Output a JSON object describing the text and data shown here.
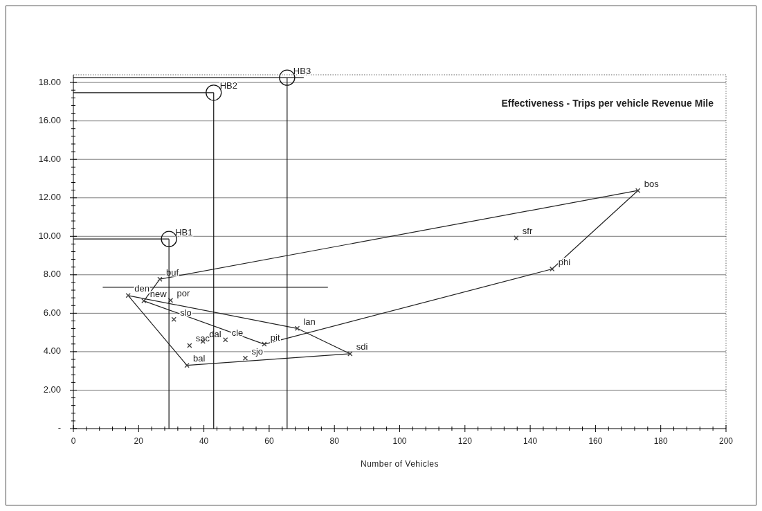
{
  "chart_data": {
    "type": "scatter",
    "title": "Effectiveness - Trips per vehicle Revenue Mile",
    "xlabel": "Number of Vehicles",
    "xlim": [
      0,
      200
    ],
    "xticks": [
      0,
      20,
      40,
      60,
      80,
      100,
      120,
      140,
      160,
      180,
      200
    ],
    "ylim": [
      0,
      18.4
    ],
    "yticks": [
      {
        "value": 0,
        "label": "-"
      },
      {
        "value": 2,
        "label": "2.00"
      },
      {
        "value": 4,
        "label": "4.00"
      },
      {
        "value": 6,
        "label": "6.00"
      },
      {
        "value": 8,
        "label": "8.00"
      },
      {
        "value": 10,
        "label": "10.00"
      },
      {
        "value": 12,
        "label": "12.00"
      },
      {
        "value": 14,
        "label": "14.00"
      },
      {
        "value": 16,
        "label": "16.00"
      },
      {
        "value": 18,
        "label": "18.00"
      }
    ],
    "grid": "y",
    "series": [
      {
        "type": "line",
        "color": "#222222",
        "x": [
          26.5,
          173.0
        ],
        "values": [
          7.77,
          12.38
        ]
      },
      {
        "type": "line",
        "color": "#222222",
        "x": [
          21.6,
          58.5,
          146.7,
          173.0
        ],
        "values": [
          6.64,
          4.39,
          8.3,
          12.38
        ]
      },
      {
        "type": "line",
        "color": "#222222",
        "x": [
          21.6,
          26.5
        ],
        "values": [
          6.64,
          7.77
        ]
      },
      {
        "type": "line",
        "color": "#222222",
        "x": [
          16.8,
          68.6,
          84.8
        ],
        "values": [
          6.92,
          5.21,
          3.89
        ]
      },
      {
        "type": "line",
        "color": "#222222",
        "x": [
          16.8,
          34.8,
          84.8
        ],
        "values": [
          6.92,
          3.29,
          3.89
        ]
      },
      {
        "type": "line",
        "color": "#222222",
        "x": [
          9,
          78
        ],
        "values": [
          7.35,
          7.35
        ]
      },
      {
        "color": "#444444",
        "marker": "cross",
        "x": [
          26.5,
          21.6,
          16.8,
          29.8,
          30.8,
          35.6,
          39.7,
          46.6,
          58.5,
          68.6,
          84.8,
          52.7,
          34.8,
          173.0,
          135.7,
          146.7
        ],
        "values": [
          7.77,
          6.64,
          6.92,
          6.67,
          5.68,
          4.32,
          4.54,
          4.62,
          4.39,
          5.21,
          3.89,
          3.66,
          3.29,
          12.38,
          9.91,
          8.3
        ]
      },
      {
        "color": "#111111",
        "marker": "circle",
        "x": [
          29.3,
          43.0,
          65.5
        ],
        "values": [
          9.86,
          17.47,
          18.25
        ],
        "errors": [
          [
            0,
            9.86
          ],
          [
            0,
            17.47
          ],
          [
            0,
            18.25
          ]
        ],
        "xerrors": [
          [
            0,
            29.3
          ],
          [
            0,
            43.0
          ],
          [
            0,
            70.6
          ]
        ]
      }
    ],
    "annotations": [
      {
        "text": "buf",
        "x": 26.5,
        "y": 7.77
      },
      {
        "text": "new",
        "x": 21.6,
        "y": 6.64
      },
      {
        "text": "den",
        "x": 16.8,
        "y": 6.92
      },
      {
        "text": "por",
        "x": 29.8,
        "y": 6.67
      },
      {
        "text": "slo",
        "x": 30.8,
        "y": 5.68
      },
      {
        "text": "sac",
        "x": 35.6,
        "y": 4.32
      },
      {
        "text": "dal",
        "x": 39.7,
        "y": 4.54
      },
      {
        "text": "cle",
        "x": 46.6,
        "y": 4.62
      },
      {
        "text": "pit",
        "x": 58.5,
        "y": 4.39
      },
      {
        "text": "lan",
        "x": 68.6,
        "y": 5.21
      },
      {
        "text": "sdi",
        "x": 84.8,
        "y": 3.89
      },
      {
        "text": "sjo",
        "x": 52.7,
        "y": 3.66
      },
      {
        "text": "bal",
        "x": 34.8,
        "y": 3.29
      },
      {
        "text": "bos",
        "x": 173.0,
        "y": 12.38
      },
      {
        "text": "sfr",
        "x": 135.7,
        "y": 9.91
      },
      {
        "text": "phi",
        "x": 146.7,
        "y": 8.3
      },
      {
        "text": "HB1",
        "x": 29.3,
        "y": 9.86
      },
      {
        "text": "HB2",
        "x": 43.0,
        "y": 17.47
      },
      {
        "text": "HB3",
        "x": 65.5,
        "y": 18.25
      }
    ]
  }
}
